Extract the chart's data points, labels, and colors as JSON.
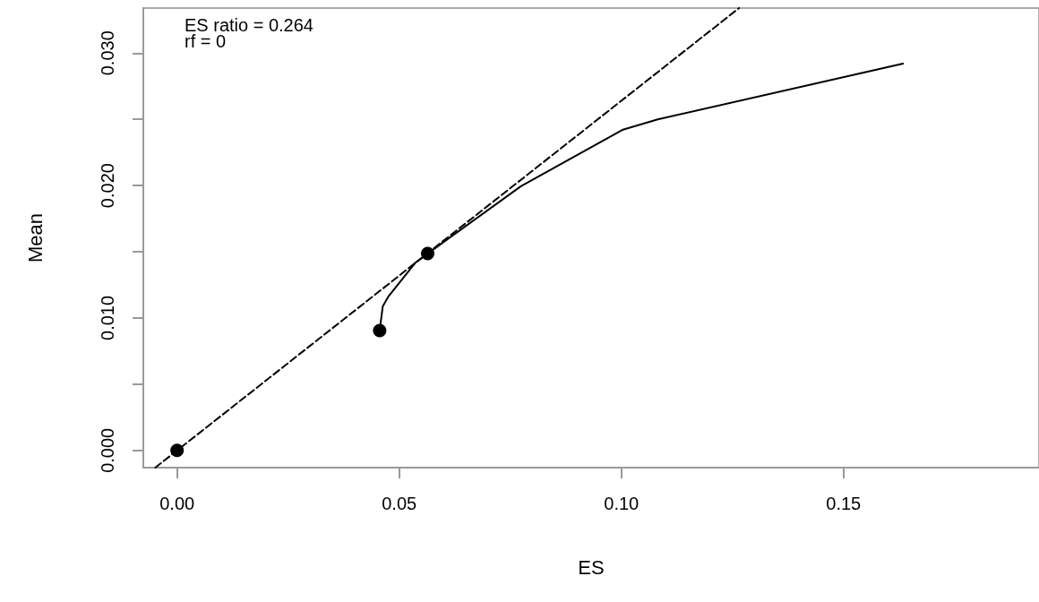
{
  "chart_data": {
    "type": "line",
    "xlabel": "ES",
    "ylabel": "Mean",
    "annotations": [
      "ES ratio = 0.264",
      "rf = 0"
    ],
    "xlim": [
      -0.0076,
      0.194
    ],
    "ylim": [
      -0.0013,
      0.0334
    ],
    "xticks": [
      {
        "value": 0,
        "label": "0.00"
      },
      {
        "value": 0.05,
        "label": "0.05"
      },
      {
        "value": 0.1,
        "label": "0.10"
      },
      {
        "value": 0.15,
        "label": "0.15"
      }
    ],
    "yticks": [
      {
        "value": 0,
        "label": "0.000"
      },
      {
        "value": 0.005,
        "label": null
      },
      {
        "value": 0.01,
        "label": "0.010"
      },
      {
        "value": 0.015,
        "label": null
      },
      {
        "value": 0.02,
        "label": "0.020"
      },
      {
        "value": 0.025,
        "label": null
      },
      {
        "value": 0.03,
        "label": "0.030"
      }
    ],
    "grid": false,
    "series": [
      {
        "color": "#000000",
        "marker": "none",
        "line_style": "solid",
        "x": [
          0.0456,
          0.0463,
          0.0475,
          0.0537,
          0.0564,
          0.0774,
          0.1002,
          0.1082,
          0.1634
        ],
        "values": [
          0.00905,
          0.01088,
          0.01159,
          0.01419,
          0.01486,
          0.01995,
          0.0242,
          0.025,
          0.0292
        ]
      },
      {
        "color": "#000000",
        "marker": "none",
        "line_style": "dashed",
        "x": [
          -0.0049,
          0.1265
        ],
        "values": [
          -0.0013,
          0.0334
        ]
      },
      {
        "type": "scatter",
        "color": "#000000",
        "marker": "circle",
        "x": [
          0,
          0.0456,
          0.0564
        ],
        "values": [
          0,
          0.00905,
          0.01486
        ]
      }
    ]
  }
}
